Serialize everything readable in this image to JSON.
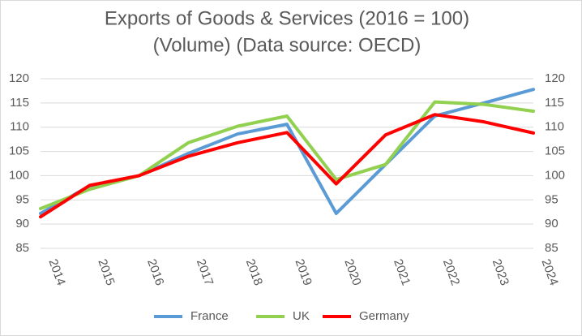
{
  "chart_data": {
    "type": "line",
    "title": [
      "Exports of Goods & Services (2016 = 100)",
      "(Volume) (Data source: OECD)"
    ],
    "categories": [
      "2014",
      "2015",
      "2016",
      "2017",
      "2018",
      "2019",
      "2020",
      "2021",
      "2022",
      "2023",
      "2024"
    ],
    "series": [
      {
        "name": "France",
        "color": "#5b9bd5",
        "values": [
          92.2,
          97.9,
          100,
          104.6,
          108.6,
          110.6,
          92.2,
          102.3,
          112.3,
          115,
          117.8
        ]
      },
      {
        "name": "UK",
        "color": "#92d050",
        "values": [
          93.2,
          97.2,
          100,
          106.8,
          110.2,
          112.3,
          99.2,
          102.3,
          115.2,
          114.7,
          113.3
        ]
      },
      {
        "name": "Germany",
        "color": "#ff0000",
        "values": [
          91.5,
          98,
          100,
          104,
          106.8,
          108.9,
          98.3,
          108.4,
          112.6,
          111.1,
          108.8
        ]
      }
    ],
    "ylim": [
      85,
      120
    ],
    "yticks": [
      85,
      90,
      95,
      100,
      105,
      110,
      115,
      120
    ],
    "y2lim": [
      85,
      120
    ],
    "y2ticks": [
      85,
      90,
      95,
      100,
      105,
      110,
      115,
      120
    ],
    "grid": true,
    "legend": "bottom"
  }
}
